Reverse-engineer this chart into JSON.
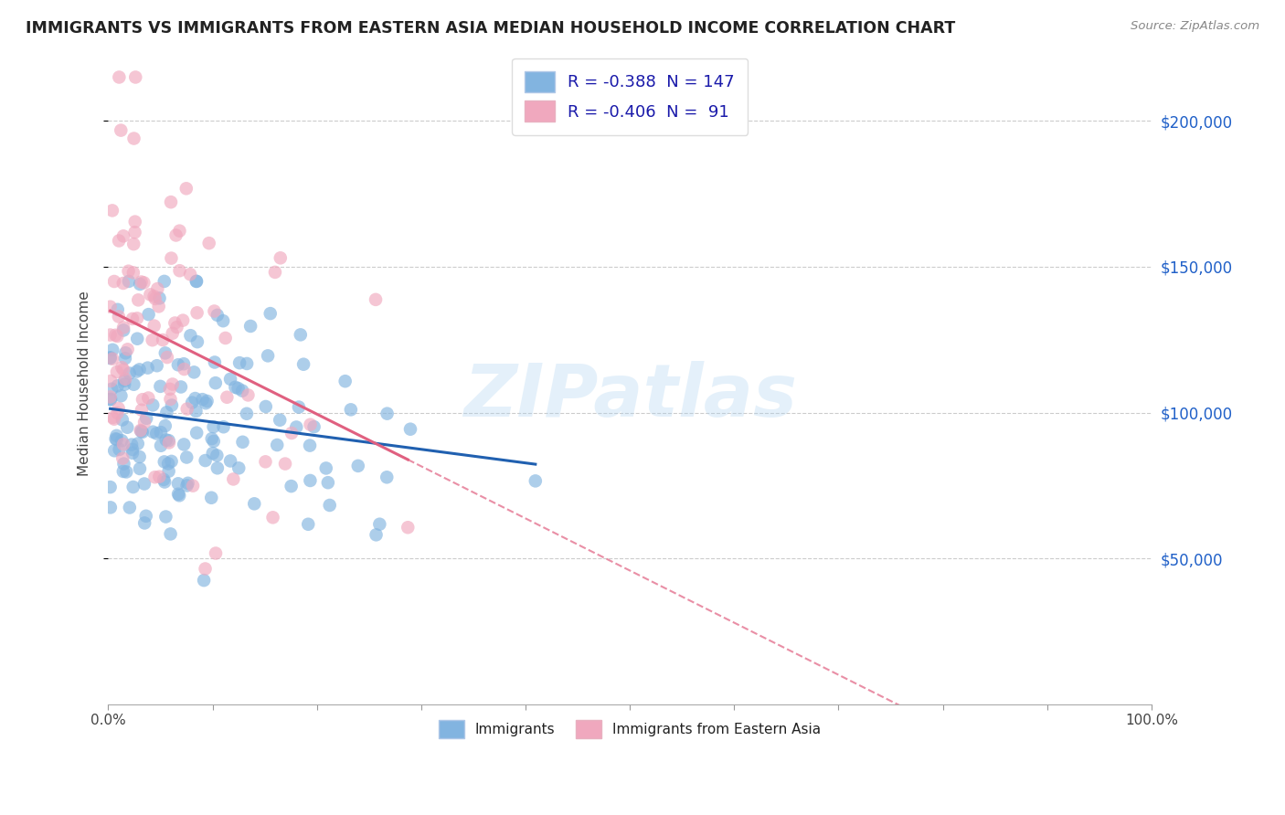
{
  "title": "IMMIGRANTS VS IMMIGRANTS FROM EASTERN ASIA MEDIAN HOUSEHOLD INCOME CORRELATION CHART",
  "source": "Source: ZipAtlas.com",
  "ylabel": "Median Household Income",
  "xlim": [
    0,
    100
  ],
  "ylim": [
    0,
    220000
  ],
  "blue_color": "#82b4e0",
  "pink_color": "#f0a8be",
  "blue_line_color": "#2060b0",
  "pink_line_color": "#e06080",
  "watermark": "ZIPatlas",
  "blue_R": -0.388,
  "blue_N": 147,
  "pink_R": -0.406,
  "pink_N": 91,
  "legend_blue_text": "R = -0.388  N = 147",
  "legend_pink_text": "R = -0.406  N =  91",
  "bottom_label1": "Immigrants",
  "bottom_label2": "Immigrants from Eastern Asia"
}
